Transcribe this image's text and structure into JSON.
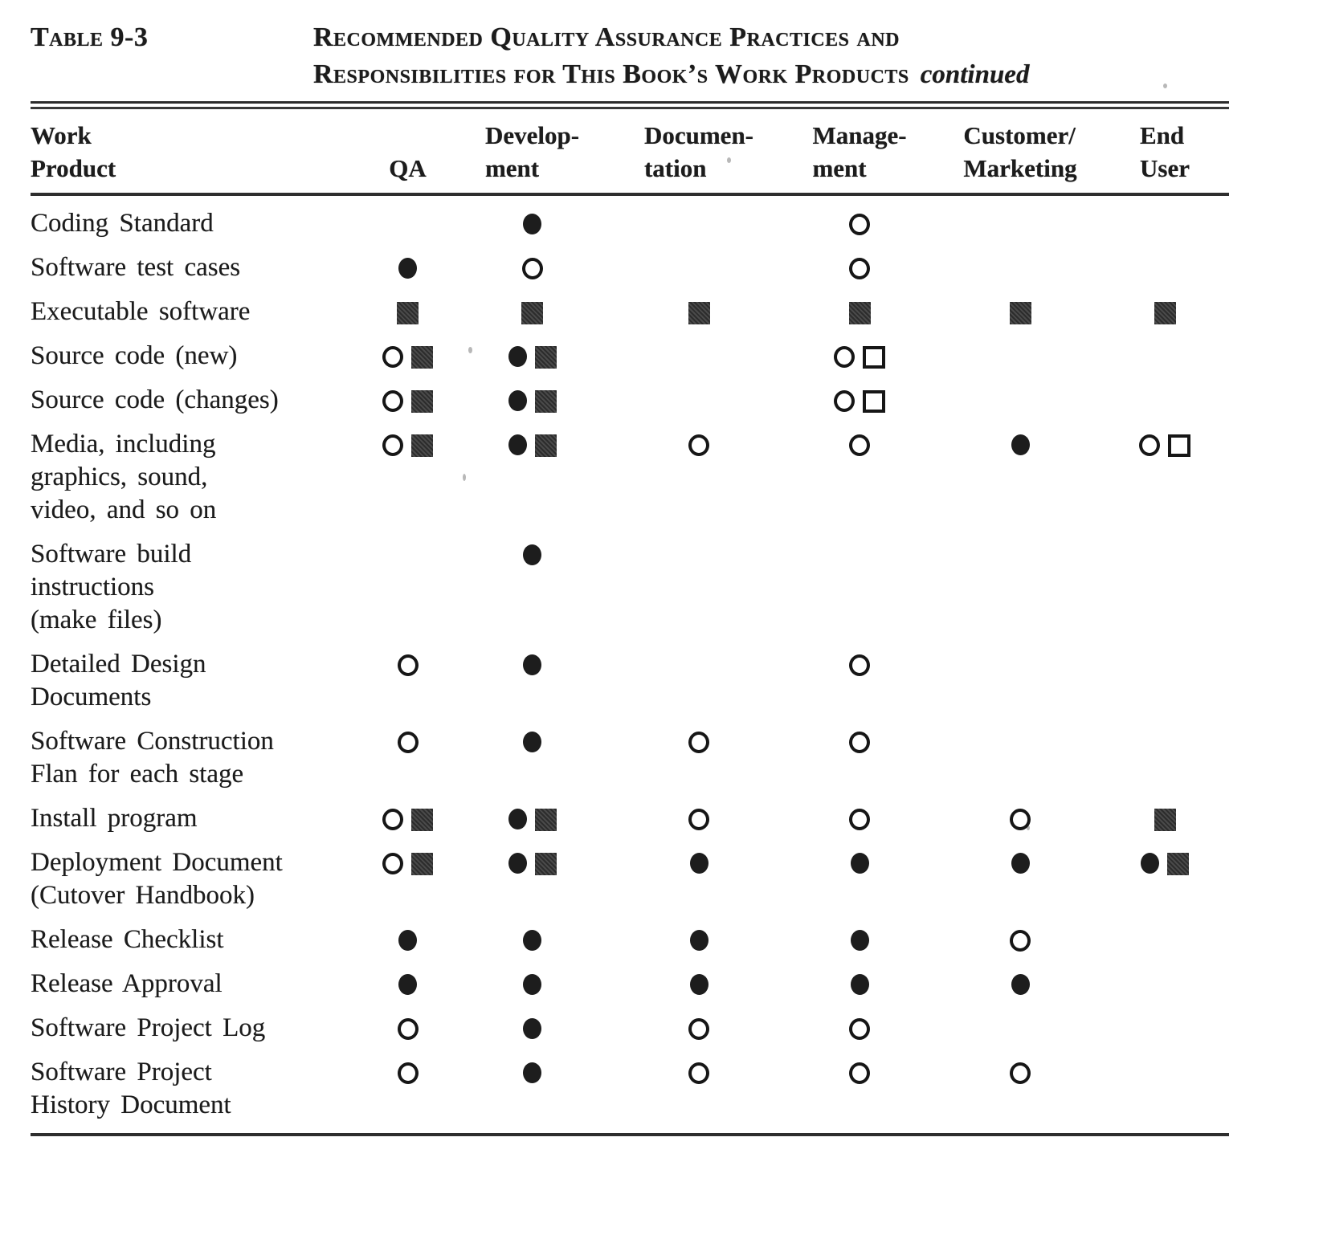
{
  "page": {
    "table_label": "Table 9-3",
    "title_line1": "Recommended Quality Assurance Practices and",
    "title_line2": "Responsibilities for This Book’s Work Products",
    "title_continued": "continued"
  },
  "colors": {
    "ink": "#1c1c1c",
    "square_fill": "#3a3a3a",
    "paper": "#ffffff"
  },
  "table": {
    "columns": [
      {
        "key": "work_product",
        "line1": "Work",
        "line2": "Product"
      },
      {
        "key": "qa",
        "line1": "",
        "line2": "QA"
      },
      {
        "key": "development",
        "line1": "Develop-",
        "line2": "ment"
      },
      {
        "key": "documentation",
        "line1": "Documen-",
        "line2": "tation"
      },
      {
        "key": "management",
        "line1": "Manage-",
        "line2": "ment"
      },
      {
        "key": "customer_marketing",
        "line1": "Customer/",
        "line2": "Marketing"
      },
      {
        "key": "end_user",
        "line1": "End",
        "line2": "User"
      }
    ],
    "symbol_legend": {
      "filled-circle": "●",
      "open-circle": "○",
      "filled-square": "■",
      "open-square": "□"
    },
    "rows": [
      {
        "label_lines": [
          "Coding Standard"
        ],
        "cells": {
          "development": [
            "filled-circle"
          ],
          "management": [
            "open-circle"
          ]
        }
      },
      {
        "label_lines": [
          "Software test cases"
        ],
        "cells": {
          "qa": [
            "filled-circle"
          ],
          "development": [
            "open-circle"
          ],
          "management": [
            "open-circle"
          ]
        }
      },
      {
        "label_lines": [
          "Executable software"
        ],
        "cells": {
          "qa": [
            "filled-square"
          ],
          "development": [
            "filled-square"
          ],
          "documentation": [
            "filled-square"
          ],
          "management": [
            "filled-square"
          ],
          "customer_marketing": [
            "filled-square"
          ],
          "end_user": [
            "filled-square"
          ]
        }
      },
      {
        "label_lines": [
          "Source code (new)"
        ],
        "cells": {
          "qa": [
            "open-circle",
            "filled-square"
          ],
          "development": [
            "filled-circle",
            "filled-square"
          ],
          "management": [
            "open-circle",
            "open-square"
          ]
        }
      },
      {
        "label_lines": [
          "Source code (changes)"
        ],
        "cells": {
          "qa": [
            "open-circle",
            "filled-square"
          ],
          "development": [
            "filled-circle",
            "filled-square"
          ],
          "management": [
            "open-circle",
            "open-square"
          ]
        }
      },
      {
        "label_lines": [
          "Media, including",
          "graphics, sound,",
          "video, and so on"
        ],
        "cells": {
          "qa": [
            "open-circle",
            "filled-square"
          ],
          "development": [
            "filled-circle",
            "filled-square"
          ],
          "documentation": [
            "open-circle"
          ],
          "management": [
            "open-circle"
          ],
          "customer_marketing": [
            "filled-circle"
          ],
          "end_user": [
            "open-circle",
            "open-square"
          ]
        }
      },
      {
        "label_lines": [
          "Software build",
          "instructions",
          "(make files)"
        ],
        "cells": {
          "development": [
            "filled-circle"
          ]
        }
      },
      {
        "label_lines": [
          "Detailed Design",
          "Documents"
        ],
        "cells": {
          "qa": [
            "open-circle"
          ],
          "development": [
            "filled-circle"
          ],
          "management": [
            "open-circle"
          ]
        }
      },
      {
        "label_lines": [
          "Software Construction",
          "Flan for each stage"
        ],
        "cells": {
          "qa": [
            "open-circle"
          ],
          "development": [
            "filled-circle"
          ],
          "documentation": [
            "open-circle"
          ],
          "management": [
            "open-circle"
          ]
        }
      },
      {
        "label_lines": [
          "Install program"
        ],
        "cells": {
          "qa": [
            "open-circle",
            "filled-square"
          ],
          "development": [
            "filled-circle",
            "filled-square"
          ],
          "documentation": [
            "open-circle"
          ],
          "management": [
            "open-circle"
          ],
          "customer_marketing": [
            "open-circle"
          ],
          "end_user": [
            "filled-square"
          ]
        }
      },
      {
        "label_lines": [
          "Deployment Document",
          "(Cutover Handbook)"
        ],
        "cells": {
          "qa": [
            "open-circle",
            "filled-square"
          ],
          "development": [
            "filled-circle",
            "filled-square"
          ],
          "documentation": [
            "filled-circle"
          ],
          "management": [
            "filled-circle"
          ],
          "customer_marketing": [
            "filled-circle"
          ],
          "end_user": [
            "filled-circle",
            "filled-square"
          ]
        }
      },
      {
        "label_lines": [
          "Release Checklist"
        ],
        "cells": {
          "qa": [
            "filled-circle"
          ],
          "development": [
            "filled-circle"
          ],
          "documentation": [
            "filled-circle"
          ],
          "management": [
            "filled-circle"
          ],
          "customer_marketing": [
            "open-circle"
          ]
        }
      },
      {
        "label_lines": [
          "Release Approval"
        ],
        "cells": {
          "qa": [
            "filled-circle"
          ],
          "development": [
            "filled-circle"
          ],
          "documentation": [
            "filled-circle"
          ],
          "management": [
            "filled-circle"
          ],
          "customer_marketing": [
            "filled-circle"
          ]
        }
      },
      {
        "label_lines": [
          "Software Project Log"
        ],
        "cells": {
          "qa": [
            "open-circle"
          ],
          "development": [
            "filled-circle"
          ],
          "documentation": [
            "open-circle"
          ],
          "management": [
            "open-circle"
          ]
        }
      },
      {
        "label_lines": [
          "Software Project",
          "History Document"
        ],
        "cells": {
          "qa": [
            "open-circle"
          ],
          "development": [
            "filled-circle"
          ],
          "documentation": [
            "open-circle"
          ],
          "management": [
            "open-circle"
          ],
          "customer_marketing": [
            "open-circle"
          ]
        }
      }
    ]
  }
}
